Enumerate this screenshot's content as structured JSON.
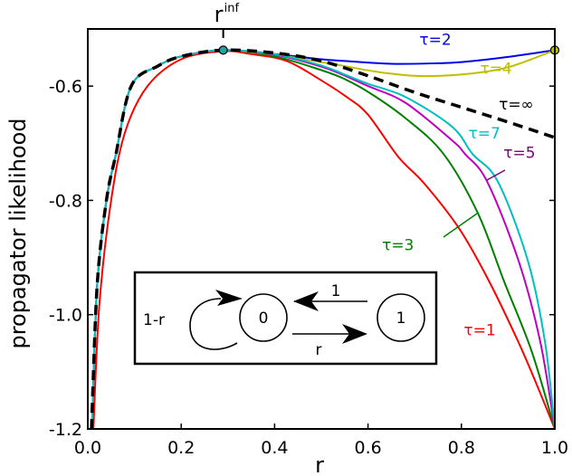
{
  "chart_data": {
    "type": "line",
    "title": "",
    "xlabel": "r",
    "ylabel": "propagator likelihood",
    "xlim": [
      0.0,
      1.0
    ],
    "ylim": [
      -1.2,
      -0.5
    ],
    "xticks": [
      0.0,
      0.2,
      0.4,
      0.6,
      0.8,
      1.0
    ],
    "xtick_labels": [
      "0.0",
      "0.2",
      "0.4",
      "0.6",
      "0.8",
      "1.0"
    ],
    "yticks": [
      -0.6,
      -0.8,
      -1.0,
      -1.2
    ],
    "ytick_labels": [
      "-0.6",
      "-0.8",
      "-1.0",
      "-1.2"
    ],
    "grid": false,
    "top_tick": {
      "x": 0.29,
      "label": "r",
      "superscript": "inf"
    },
    "markers": [
      {
        "x": 0.29,
        "y": -0.537,
        "color": "#1aa6a6"
      },
      {
        "x": 1.0,
        "y": -0.537,
        "color": "#bfbf00"
      }
    ],
    "series": [
      {
        "name": "τ=1",
        "color": "#ff0000",
        "dash": false,
        "x": [
          0.012,
          0.025,
          0.05,
          0.08,
          0.128,
          0.2,
          0.29,
          0.35,
          0.426,
          0.5,
          0.554,
          0.6,
          0.665,
          0.72,
          0.795,
          0.859,
          0.922,
          0.96,
          1.0
        ],
        "y": [
          -1.2,
          -0.98,
          -0.8,
          -0.68,
          -0.6,
          -0.553,
          -0.539,
          -0.544,
          -0.556,
          -0.59,
          -0.619,
          -0.65,
          -0.724,
          -0.77,
          -0.849,
          -0.941,
          -1.048,
          -1.12,
          -1.2
        ]
      },
      {
        "name": "τ=2",
        "color": "#0000ee",
        "dash": false,
        "x": [
          0.009,
          0.02,
          0.04,
          0.06,
          0.093,
          0.15,
          0.2,
          0.29,
          0.4,
          0.5,
          0.55,
          0.65,
          0.75,
          0.8,
          0.9,
          1.0
        ],
        "y": [
          -1.2,
          -0.95,
          -0.8,
          -0.72,
          -0.6,
          -0.565,
          -0.548,
          -0.537,
          -0.544,
          -0.553,
          -0.556,
          -0.561,
          -0.56,
          -0.558,
          -0.549,
          -0.537
        ]
      },
      {
        "name": "τ=3",
        "color": "#008000",
        "dash": false,
        "x": [
          0.009,
          0.02,
          0.04,
          0.06,
          0.093,
          0.15,
          0.2,
          0.29,
          0.4,
          0.5,
          0.548,
          0.6,
          0.68,
          0.762,
          0.835,
          0.891,
          0.95,
          1.0
        ],
        "y": [
          -1.2,
          -0.95,
          -0.8,
          -0.72,
          -0.6,
          -0.565,
          -0.548,
          -0.537,
          -0.548,
          -0.572,
          -0.587,
          -0.61,
          -0.656,
          -0.719,
          -0.822,
          -0.941,
          -1.063,
          -1.2
        ]
      },
      {
        "name": "τ=4",
        "color": "#bfbf00",
        "dash": false,
        "x": [
          0.009,
          0.02,
          0.04,
          0.06,
          0.093,
          0.15,
          0.2,
          0.29,
          0.4,
          0.5,
          0.55,
          0.62,
          0.7,
          0.78,
          0.85,
          0.9,
          0.95,
          1.0
        ],
        "y": [
          -1.2,
          -0.95,
          -0.8,
          -0.72,
          -0.6,
          -0.565,
          -0.548,
          -0.537,
          -0.545,
          -0.558,
          -0.565,
          -0.575,
          -0.582,
          -0.581,
          -0.575,
          -0.567,
          -0.553,
          -0.537
        ]
      },
      {
        "name": "τ=5",
        "color": "#bf00bf",
        "dash": false,
        "x": [
          0.009,
          0.02,
          0.04,
          0.06,
          0.093,
          0.15,
          0.2,
          0.29,
          0.4,
          0.5,
          0.548,
          0.6,
          0.68,
          0.78,
          0.808,
          0.855,
          0.922,
          0.969,
          1.0
        ],
        "y": [
          -1.2,
          -0.95,
          -0.8,
          -0.72,
          -0.6,
          -0.565,
          -0.548,
          -0.537,
          -0.545,
          -0.566,
          -0.581,
          -0.6,
          -0.629,
          -0.695,
          -0.719,
          -0.767,
          -0.905,
          -1.048,
          -1.2
        ]
      },
      {
        "name": "τ=7",
        "color": "#00bfbf",
        "dash": false,
        "x": [
          0.009,
          0.02,
          0.04,
          0.06,
          0.093,
          0.15,
          0.2,
          0.29,
          0.4,
          0.5,
          0.548,
          0.6,
          0.68,
          0.78,
          0.824,
          0.878,
          0.942,
          0.979,
          1.0
        ],
        "y": [
          -1.2,
          -0.95,
          -0.8,
          -0.72,
          -0.6,
          -0.565,
          -0.548,
          -0.537,
          -0.544,
          -0.564,
          -0.579,
          -0.596,
          -0.619,
          -0.671,
          -0.719,
          -0.767,
          -0.905,
          -1.048,
          -1.2
        ]
      },
      {
        "name": "τ=∞",
        "color": "#000000",
        "dash": true,
        "x": [
          0.008,
          0.02,
          0.04,
          0.06,
          0.093,
          0.15,
          0.2,
          0.29,
          0.4,
          0.5,
          0.6,
          0.7,
          0.8,
          0.9,
          1.0
        ],
        "y": [
          -1.2,
          -0.95,
          -0.8,
          -0.72,
          -0.6,
          -0.565,
          -0.548,
          -0.537,
          -0.542,
          -0.556,
          -0.582,
          -0.611,
          -0.637,
          -0.663,
          -0.69
        ]
      }
    ],
    "annotations": [
      {
        "text": "τ=2",
        "color": "#0000ee",
        "x": 0.71,
        "y": -0.528
      },
      {
        "text": "τ=4",
        "color": "#bfbf00",
        "x": 0.84,
        "y": -0.578
      },
      {
        "text": "τ=∞",
        "color": "#000000",
        "x": 0.88,
        "y": -0.641
      },
      {
        "text": "τ=7",
        "color": "#00bfbf",
        "x": 0.815,
        "y": -0.692
      },
      {
        "text": "τ=5",
        "color": "#800080",
        "x": 0.89,
        "y": -0.726
      },
      {
        "text": "τ=3",
        "color": "#008000",
        "x": 0.63,
        "y": -0.887
      },
      {
        "text": "τ=1",
        "color": "#ff0000",
        "x": 0.805,
        "y": -1.036
      }
    ],
    "inset": {
      "self_loop_label": "1-r",
      "state0_label": "0",
      "state1_label": "1",
      "arrow_1_to_0_label": "1",
      "arrow_0_to_1_label": "r"
    }
  }
}
